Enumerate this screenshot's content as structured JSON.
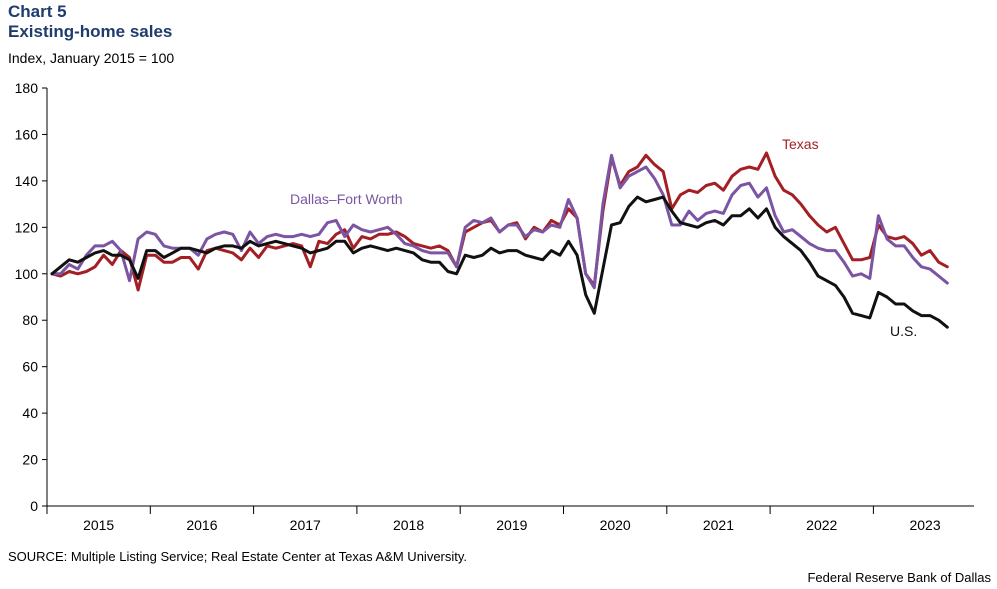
{
  "header": {
    "chart_label": "Chart 5",
    "title": "Existing-home sales",
    "subtitle": "Index, January 2015 = 100"
  },
  "footer": {
    "source": "SOURCE: Multiple Listing Service; Real Estate Center at Texas A&M University.",
    "credit": "Federal Reserve Bank of Dallas"
  },
  "chart_data": {
    "type": "line",
    "title": "Existing-home sales",
    "ylabel": "Index, January 2015 = 100",
    "ylim": [
      0,
      180
    ],
    "yticks": [
      0,
      20,
      40,
      60,
      80,
      100,
      120,
      140,
      160,
      180
    ],
    "x_period_labels": [
      "2015",
      "2016",
      "2017",
      "2018",
      "2019",
      "2020",
      "2021",
      "2022",
      "2023"
    ],
    "x_start": "2015-01",
    "x_end": "2023-09",
    "grid": false,
    "legend": "inline labels",
    "series": [
      {
        "name": "Texas",
        "color": "#a31f24",
        "values": [
          100,
          99,
          101,
          100,
          101,
          103,
          108,
          104,
          110,
          107,
          93,
          108,
          108,
          105,
          105,
          107,
          107,
          102,
          110,
          111,
          110,
          109,
          106,
          111,
          107,
          112,
          111,
          112,
          113,
          112,
          103,
          114,
          113,
          117,
          119,
          111,
          116,
          115,
          117,
          117,
          118,
          116,
          113,
          112,
          111,
          112,
          110,
          103,
          118,
          120,
          122,
          123,
          118,
          121,
          122,
          115,
          120,
          118,
          123,
          121,
          128,
          124,
          100,
          95,
          127,
          150,
          138,
          144,
          146,
          151,
          147,
          144,
          128,
          134,
          136,
          135,
          138,
          139,
          136,
          142,
          145,
          146,
          145,
          152,
          142,
          136,
          134,
          130,
          125,
          121,
          118,
          120,
          113,
          106,
          106,
          107,
          121,
          116,
          115,
          116,
          113,
          108,
          110,
          105,
          103
        ],
        "label_text": "Texas"
      },
      {
        "name": "Dallas–Fort Worth",
        "color": "#7b55a3",
        "values": [
          100,
          100,
          104,
          102,
          108,
          112,
          112,
          114,
          110,
          97,
          115,
          118,
          117,
          112,
          111,
          111,
          111,
          108,
          115,
          117,
          118,
          117,
          110,
          118,
          113,
          116,
          117,
          116,
          116,
          117,
          116,
          117,
          122,
          123,
          116,
          121,
          119,
          118,
          119,
          120,
          117,
          113,
          112,
          110,
          109,
          109,
          109,
          103,
          120,
          123,
          122,
          124,
          118,
          121,
          121,
          116,
          119,
          118,
          121,
          120,
          132,
          124,
          100,
          94,
          130,
          151,
          137,
          142,
          144,
          146,
          141,
          134,
          121,
          121,
          127,
          123,
          126,
          127,
          126,
          134,
          138,
          139,
          133,
          137,
          125,
          118,
          119,
          116,
          113,
          111,
          110,
          110,
          105,
          99,
          100,
          98,
          125,
          115,
          112,
          112,
          107,
          103,
          102,
          99,
          96
        ],
        "label_text": "Dallas–Fort Worth"
      },
      {
        "name": "U.S.",
        "color": "#111111",
        "values": [
          100,
          103,
          106,
          105,
          107,
          109,
          110,
          108,
          108,
          106,
          98,
          110,
          110,
          107,
          109,
          111,
          111,
          110,
          109,
          111,
          112,
          112,
          111,
          114,
          112,
          113,
          114,
          113,
          112,
          111,
          109,
          110,
          111,
          114,
          114,
          109,
          111,
          112,
          111,
          110,
          111,
          110,
          109,
          106,
          105,
          105,
          101,
          100,
          108,
          107,
          108,
          111,
          109,
          110,
          110,
          108,
          107,
          106,
          110,
          108,
          114,
          108,
          91,
          83,
          102,
          121,
          122,
          129,
          133,
          131,
          132,
          133,
          127,
          122,
          121,
          120,
          122,
          123,
          121,
          125,
          125,
          128,
          124,
          128,
          120,
          116,
          113,
          110,
          105,
          99,
          97,
          95,
          90,
          83,
          82,
          81,
          92,
          90,
          87,
          87,
          84,
          82,
          82,
          80,
          77
        ],
        "label_text": "U.S."
      }
    ]
  }
}
